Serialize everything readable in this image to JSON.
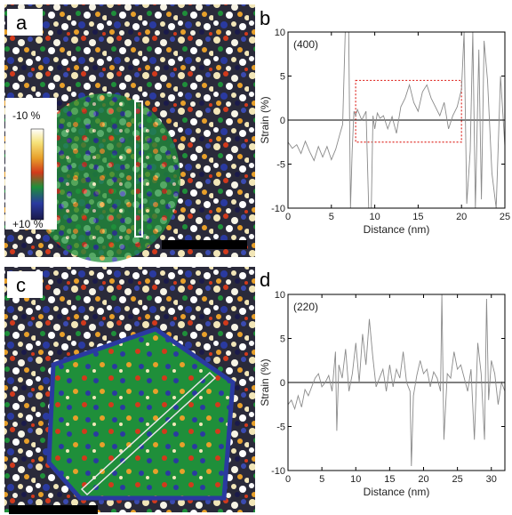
{
  "panels": {
    "a": {
      "letter": "a",
      "colorbar_top": "-10 %",
      "colorbar_bottom": "+10 %",
      "colorbar_colors": [
        "#ffffff",
        "#f6e27a",
        "#e8a02a",
        "#d23a1c",
        "#1f8f3a",
        "#2a3aa0",
        "#1a1a4a"
      ]
    },
    "c": {
      "letter": "c"
    }
  },
  "chart_data": [
    {
      "panel": "b",
      "type": "line",
      "annotation": "(400)",
      "xlabel": "Distance (nm)",
      "ylabel": "Strain (%)",
      "xlim": [
        0,
        25
      ],
      "ylim": [
        -10,
        10
      ],
      "xticks": [
        0,
        5,
        10,
        15,
        20,
        25
      ],
      "yticks": [
        -10,
        -5,
        0,
        5,
        10
      ],
      "zero_line": true,
      "highlight_box": {
        "x": [
          7.8,
          20
        ],
        "y": [
          -2.5,
          4.5
        ],
        "color": "#e0302a",
        "style": "dotted"
      },
      "series": [
        {
          "color": "#8a8a8a",
          "x": [
            0,
            0.5,
            1,
            1.5,
            2,
            2.5,
            3,
            3.5,
            4,
            4.5,
            5,
            5.5,
            6,
            6.3,
            6.6,
            7.0,
            7.2,
            7.4,
            7.6,
            7.8,
            8,
            8.5,
            9,
            9.3,
            9.6,
            9.8,
            10.0,
            10.3,
            10.6,
            11,
            11.5,
            12,
            12.5,
            13,
            13.5,
            14,
            14.5,
            15,
            15.5,
            16,
            16.5,
            17,
            17.5,
            18,
            18.5,
            19,
            19.5,
            20,
            20.3,
            20.6,
            21,
            21.3,
            21.6,
            22,
            22.3,
            22.6,
            23,
            23.5,
            24,
            24.5,
            25
          ],
          "y": [
            -2.5,
            -3.2,
            -2.8,
            -3.8,
            -2.4,
            -3.6,
            -4.6,
            -3.0,
            -4.2,
            -3.0,
            -4.5,
            -3.3,
            -1.5,
            -0.5,
            10,
            10,
            -10,
            -3.5,
            1.0,
            0.5,
            1.2,
            0.0,
            1.0,
            -10,
            -10,
            0.5,
            -1.0,
            0.8,
            0.2,
            0.5,
            -1.0,
            0.4,
            -1.5,
            1.5,
            2.5,
            4.0,
            2.0,
            1.0,
            3.2,
            4.0,
            2.5,
            1.5,
            0.5,
            2.0,
            -1.0,
            0.5,
            1.5,
            3.5,
            10,
            -9.5,
            -3.5,
            10,
            -10,
            8,
            -9,
            9,
            4.5,
            -6,
            -10,
            5,
            -3
          ]
        }
      ]
    },
    {
      "panel": "d",
      "type": "line",
      "annotation": "(220)",
      "xlabel": "Distance (nm)",
      "ylabel": "Strain (%)",
      "xlim": [
        0,
        32
      ],
      "ylim": [
        -10,
        10
      ],
      "xticks": [
        0,
        5,
        10,
        15,
        20,
        25,
        30
      ],
      "yticks": [
        -10,
        -5,
        0,
        5,
        10
      ],
      "zero_line": true,
      "series": [
        {
          "color": "#8a8a8a",
          "x": [
            0,
            0.5,
            1,
            1.5,
            2,
            2.5,
            3,
            3.5,
            4,
            4.5,
            5,
            5.5,
            6,
            6.5,
            7,
            7.2,
            7.5,
            8,
            8.5,
            9,
            9.5,
            10,
            10.5,
            11,
            11.5,
            12,
            12.5,
            13,
            13.5,
            14,
            14.5,
            15,
            15.5,
            16,
            16.5,
            17,
            17.5,
            18,
            18.2,
            18.5,
            19,
            19.5,
            20,
            20.5,
            21,
            21.5,
            22,
            22.5,
            22.7,
            23,
            23.5,
            24,
            24.5,
            25,
            25.5,
            26,
            26.5,
            27,
            27.5,
            28,
            28.5,
            29,
            29.3,
            29.6,
            30,
            30.5,
            31,
            31.5,
            32
          ],
          "y": [
            -2.5,
            -2.0,
            -3.0,
            -1.5,
            -2.8,
            -0.8,
            -1.5,
            -0.5,
            0.5,
            1.0,
            -0.5,
            0.0,
            0.8,
            -1.0,
            3.5,
            -5.5,
            2.0,
            0.5,
            3.8,
            -1.0,
            1.0,
            4.5,
            0.0,
            5.5,
            2.0,
            7.2,
            3.0,
            -0.5,
            0.5,
            1.5,
            -1.0,
            2.0,
            -0.5,
            1.5,
            0.5,
            3.5,
            0.0,
            -1.0,
            -9.5,
            -1.5,
            0.8,
            2.5,
            1.0,
            1.5,
            -0.5,
            1.2,
            0.5,
            -1.0,
            10,
            -6.5,
            1.0,
            0.5,
            3.5,
            1.5,
            2.0,
            0.5,
            -1.0,
            1.5,
            -6.5,
            4.5,
            1.0,
            -6.5,
            9.5,
            -2.0,
            2.5,
            1.0,
            -2.5,
            0.0,
            -1.0
          ]
        }
      ]
    }
  ]
}
